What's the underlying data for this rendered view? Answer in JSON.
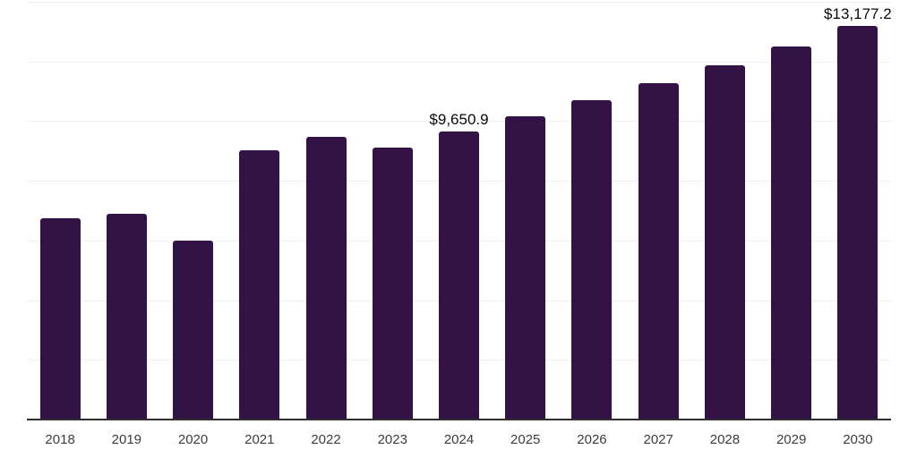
{
  "chart_data": {
    "type": "bar",
    "title": "",
    "xlabel": "",
    "ylabel": "",
    "categories": [
      "2018",
      "2019",
      "2020",
      "2021",
      "2022",
      "2023",
      "2024",
      "2025",
      "2026",
      "2027",
      "2028",
      "2029",
      "2030"
    ],
    "values": [
      6760,
      6910,
      6010,
      9020,
      9470,
      9110,
      9650.9,
      10170,
      10710,
      11280,
      11880,
      12510,
      13177.2
    ],
    "data_labels": [
      "",
      "",
      "",
      "",
      "",
      "",
      "$9,650.9",
      "",
      "",
      "",
      "",
      "",
      "$13,177.2"
    ],
    "ylim": [
      0,
      14000
    ],
    "gridline_values": [
      2000,
      4000,
      6000,
      8000,
      10000,
      12000,
      14000
    ],
    "grid": "horizontal",
    "y_tick_labels_visible": false,
    "legend": "none",
    "currency_prefix": "$"
  },
  "colors": {
    "background": "#ffffff",
    "bar": "#331245",
    "axis_line": "#2e2e2e",
    "gridline": "#f0f0f0",
    "data_label": "#0a0a0a",
    "tick_label": "#3c3c3c"
  }
}
